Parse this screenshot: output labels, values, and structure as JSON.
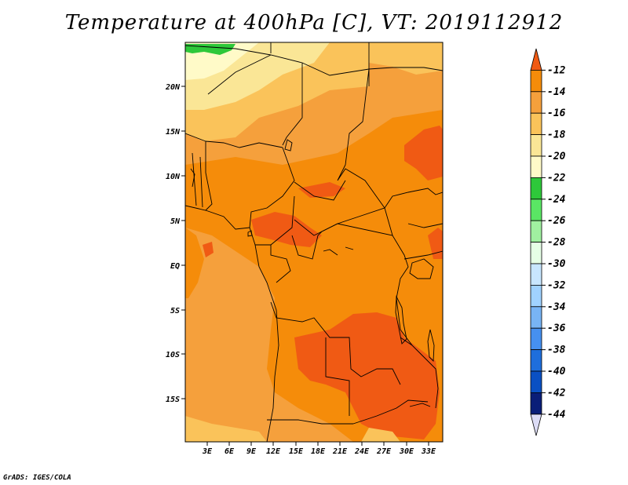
{
  "title": "Temperature at 400hPa [C], VT: 2019112912",
  "credit": "GrADS: IGES/COLA",
  "lat_labels": [
    "20N",
    "15N",
    "10N",
    "5N",
    "EQ",
    "5S",
    "10S",
    "15S"
  ],
  "lon_labels": [
    "3E",
    "6E",
    "9E",
    "12E",
    "15E",
    "18E",
    "21E",
    "24E",
    "27E",
    "30E",
    "33E"
  ],
  "colorbar": {
    "labels": [
      "-12",
      "-14",
      "-16",
      "-18",
      "-20",
      "-22",
      "-24",
      "-26",
      "-28",
      "-30",
      "-32",
      "-34",
      "-36",
      "-38",
      "-40",
      "-42",
      "-44"
    ],
    "colors": [
      "#f05a14",
      "#f58c0a",
      "#f5a03c",
      "#fac35a",
      "#fae696",
      "#fffac8",
      "#2ec83a",
      "#5ae664",
      "#a0f0a0",
      "#e6ffe6",
      "#c8e6ff",
      "#a0d2ff",
      "#78b4f5",
      "#4690f0",
      "#1e6edc",
      "#0a50c3",
      "#0a1e78",
      "#dcdcf5"
    ]
  },
  "map_colors": {
    "base": "#f5a03c",
    "orange": "#f58c0a",
    "red_orange": "#f05a14",
    "yellow": "#fac35a",
    "light_yellow": "#fae696",
    "pale": "#fffac8",
    "green": "#2ec83a"
  }
}
